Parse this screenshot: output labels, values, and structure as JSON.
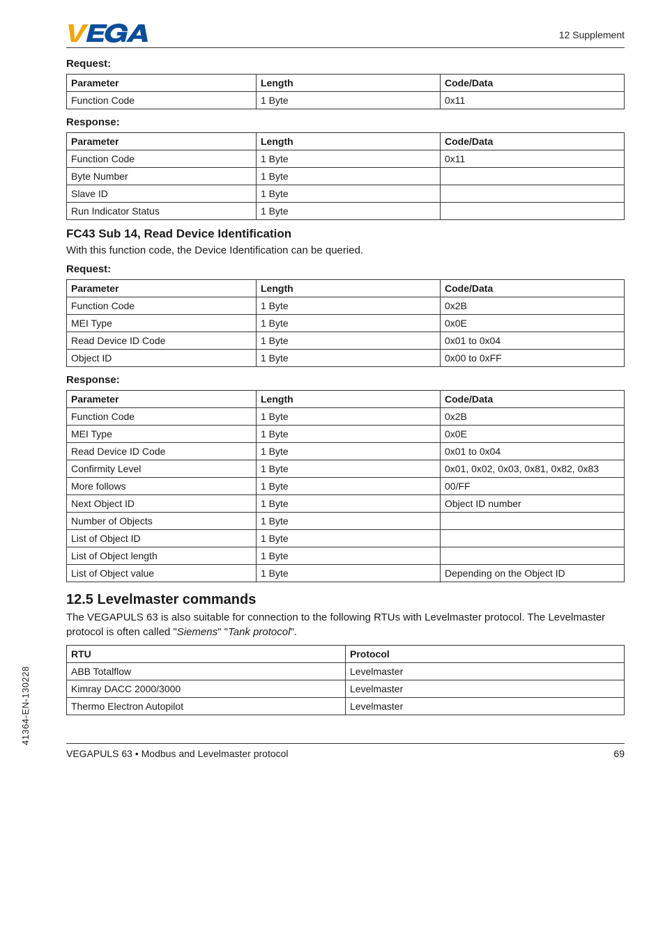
{
  "header": {
    "supplement": "12 Supplement"
  },
  "logo": {
    "fill_e": "#f5a500",
    "fill_rest": "#0a4e9b"
  },
  "sections": {
    "request1_label": "Request:",
    "response1_label": "Response:",
    "fc43_title": "FC43 Sub 14, Read Device Identification",
    "fc43_desc": "With this function code, the Device Identification can be queried.",
    "request2_label": "Request:",
    "response2_label": "Response:",
    "levelmaster_title": "12.5   Levelmaster commands",
    "levelmaster_desc_pre": "The VEGAPULS 63 is also suitable for connection to the following RTUs with Levelmaster protocol. The Levelmaster protocol is often called  \"",
    "levelmaster_siemens": "Siemens",
    "levelmaster_mid": "\"  \"",
    "levelmaster_tank": "Tank protocol",
    "levelmaster_desc_post": "\"."
  },
  "table_headers": {
    "parameter": "Parameter",
    "length": "Length",
    "codedata": "Code/Data",
    "rtu": "RTU",
    "protocol": "Protocol"
  },
  "request1_rows": [
    {
      "p": "Function Code",
      "l": "1 Byte",
      "c": "0x11"
    }
  ],
  "response1_rows": [
    {
      "p": "Function Code",
      "l": "1 Byte",
      "c": "0x11"
    },
    {
      "p": "Byte Number",
      "l": "1 Byte",
      "c": ""
    },
    {
      "p": "Slave ID",
      "l": "1 Byte",
      "c": ""
    },
    {
      "p": "Run Indicator Status",
      "l": "1 Byte",
      "c": ""
    }
  ],
  "request2_rows": [
    {
      "p": "Function Code",
      "l": "1 Byte",
      "c": "0x2B"
    },
    {
      "p": "MEI Type",
      "l": "1 Byte",
      "c": "0x0E"
    },
    {
      "p": "Read Device ID Code",
      "l": "1 Byte",
      "c": "0x01 to 0x04"
    },
    {
      "p": "Object ID",
      "l": "1 Byte",
      "c": "0x00 to 0xFF"
    }
  ],
  "response2_rows": [
    {
      "p": "Function Code",
      "l": "1 Byte",
      "c": "0x2B"
    },
    {
      "p": "MEI Type",
      "l": "1 Byte",
      "c": "0x0E"
    },
    {
      "p": "Read Device ID Code",
      "l": "1 Byte",
      "c": "0x01 to 0x04"
    },
    {
      "p": "Confirmity Level",
      "l": "1 Byte",
      "c": "0x01, 0x02, 0x03, 0x81, 0x82, 0x83"
    },
    {
      "p": "More follows",
      "l": "1 Byte",
      "c": "00/FF"
    },
    {
      "p": "Next Object ID",
      "l": "1 Byte",
      "c": "Object ID number"
    },
    {
      "p": "Number of Objects",
      "l": "1 Byte",
      "c": ""
    },
    {
      "p": "List of Object ID",
      "l": "1 Byte",
      "c": ""
    },
    {
      "p": "List of Object length",
      "l": "1 Byte",
      "c": ""
    },
    {
      "p": "List of Object value",
      "l": "1 Byte",
      "c": "Depending on the Object ID"
    }
  ],
  "levelmaster_rows": [
    {
      "r": "ABB Totalflow",
      "pr": "Levelmaster"
    },
    {
      "r": "Kimray DACC 2000/3000",
      "pr": "Levelmaster"
    },
    {
      "r": "Thermo Electron Autopilot",
      "pr": "Levelmaster"
    }
  ],
  "footer": {
    "left": "VEGAPULS 63 • Modbus and Levelmaster protocol",
    "page": "69"
  },
  "side_code": "41364-EN-130228"
}
